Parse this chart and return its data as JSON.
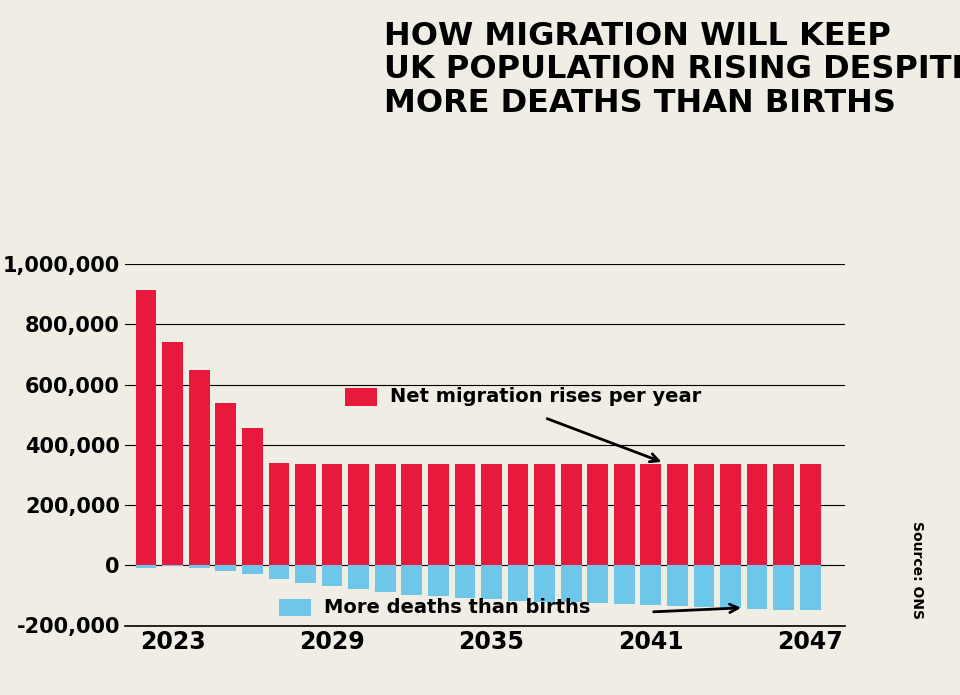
{
  "title": "HOW MIGRATION WILL KEEP\nUK POPULATION RISING DESPITE\nMORE DEATHS THAN BIRTHS",
  "background_color": "#f0ede4",
  "bar_color_red": "#e8193c",
  "bar_color_blue": "#6ec6e8",
  "years": [
    2022,
    2023,
    2024,
    2025,
    2026,
    2027,
    2028,
    2029,
    2030,
    2031,
    2032,
    2033,
    2034,
    2035,
    2036,
    2037,
    2038,
    2039,
    2040,
    2041,
    2042,
    2043,
    2044,
    2045,
    2046,
    2047
  ],
  "net_migration": [
    915000,
    740000,
    650000,
    540000,
    455000,
    340000,
    335000,
    335000,
    335000,
    335000,
    335000,
    335000,
    335000,
    335000,
    335000,
    335000,
    335000,
    335000,
    335000,
    335000,
    335000,
    335000,
    335000,
    335000,
    335000,
    335000
  ],
  "natural_change": [
    -8000,
    -3000,
    -10000,
    -20000,
    -30000,
    -45000,
    -58000,
    -68000,
    -78000,
    -88000,
    -98000,
    -103000,
    -108000,
    -113000,
    -118000,
    -121000,
    -123000,
    -126000,
    -129000,
    -132000,
    -135000,
    -138000,
    -141000,
    -144000,
    -147000,
    -150000
  ],
  "ylim": [
    -200000,
    1000000
  ],
  "yticks": [
    -200000,
    0,
    200000,
    400000,
    600000,
    800000,
    1000000
  ],
  "xticks": [
    2023,
    2029,
    2035,
    2041,
    2047
  ],
  "legend_migration": "Net migration rises per year",
  "legend_natural": "More deaths than births",
  "source": "Source: ONS"
}
